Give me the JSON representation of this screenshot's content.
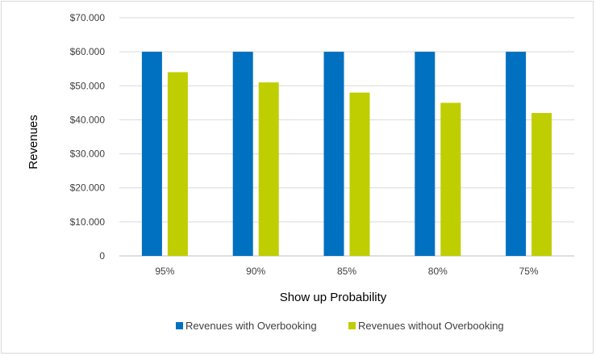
{
  "chart_data": {
    "type": "bar",
    "xlabel": "Show up Probability",
    "ylabel": "Revenues",
    "categories": [
      "95%",
      "90%",
      "85%",
      "80%",
      "75%"
    ],
    "ylim": [
      0,
      70000
    ],
    "yticks": [
      0,
      10000,
      20000,
      30000,
      40000,
      50000,
      60000,
      70000
    ],
    "ytick_labels": [
      "0",
      "$10.000",
      "$20.000",
      "$30.000",
      "$40.000",
      "$50.000",
      "$60.000",
      "$70.000"
    ],
    "grid": true,
    "legend_position": "bottom",
    "series": [
      {
        "name": "Revenues with Overbooking",
        "color": "#0070C0",
        "values": [
          60000,
          60000,
          60000,
          60000,
          60000
        ]
      },
      {
        "name": "Revenues without Overbooking",
        "color": "#BFCE00",
        "values": [
          54000,
          51000,
          48000,
          45000,
          42000
        ]
      }
    ]
  }
}
